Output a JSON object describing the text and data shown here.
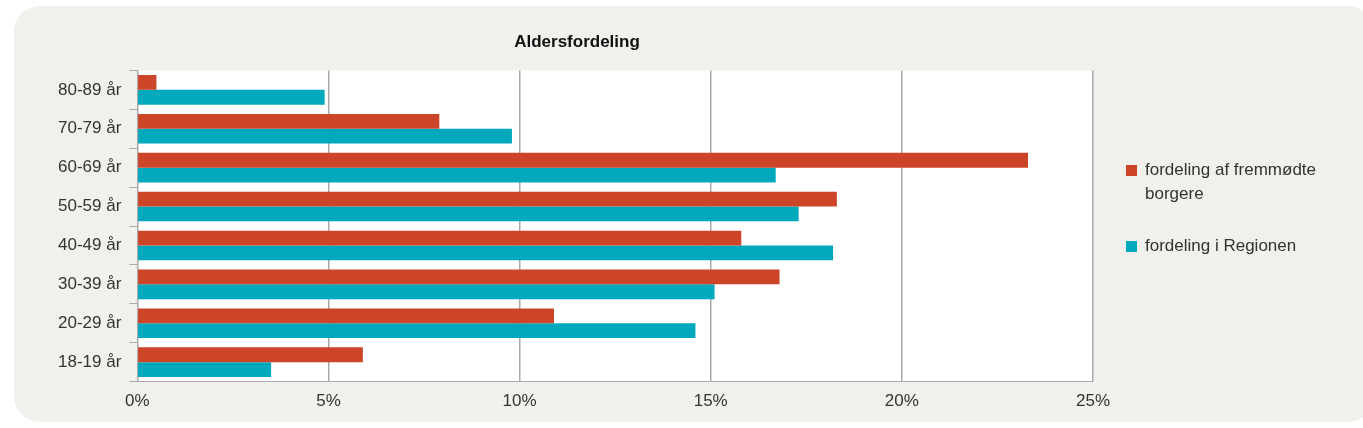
{
  "chart_data": {
    "type": "bar",
    "orientation": "horizontal",
    "title": "Aldersfordeling",
    "categories": [
      "80-89 år",
      "70-79 år",
      "60-69 år",
      "50-59 år",
      "40-49 år",
      "30-39 år",
      "20-29 år",
      "18-19 år"
    ],
    "series": [
      {
        "name": "fordeling af fremmødte borgere",
        "color": "#cc4529",
        "values": [
          0.5,
          7.9,
          23.3,
          18.3,
          15.8,
          16.8,
          10.9,
          5.9
        ]
      },
      {
        "name": "fordeling i Regionen",
        "color": "#02a8bb",
        "values": [
          4.9,
          9.8,
          16.7,
          17.3,
          18.2,
          15.1,
          14.6,
          3.5
        ]
      }
    ],
    "xlim": [
      0,
      25
    ],
    "xticks": [
      {
        "value": 0,
        "label": "0%"
      },
      {
        "value": 5,
        "label": "5%"
      },
      {
        "value": 10,
        "label": "10%"
      },
      {
        "value": 15,
        "label": "15%"
      },
      {
        "value": 20,
        "label": "20%"
      },
      {
        "value": 25,
        "label": "25%"
      }
    ],
    "grid": "x",
    "legend": "right"
  }
}
